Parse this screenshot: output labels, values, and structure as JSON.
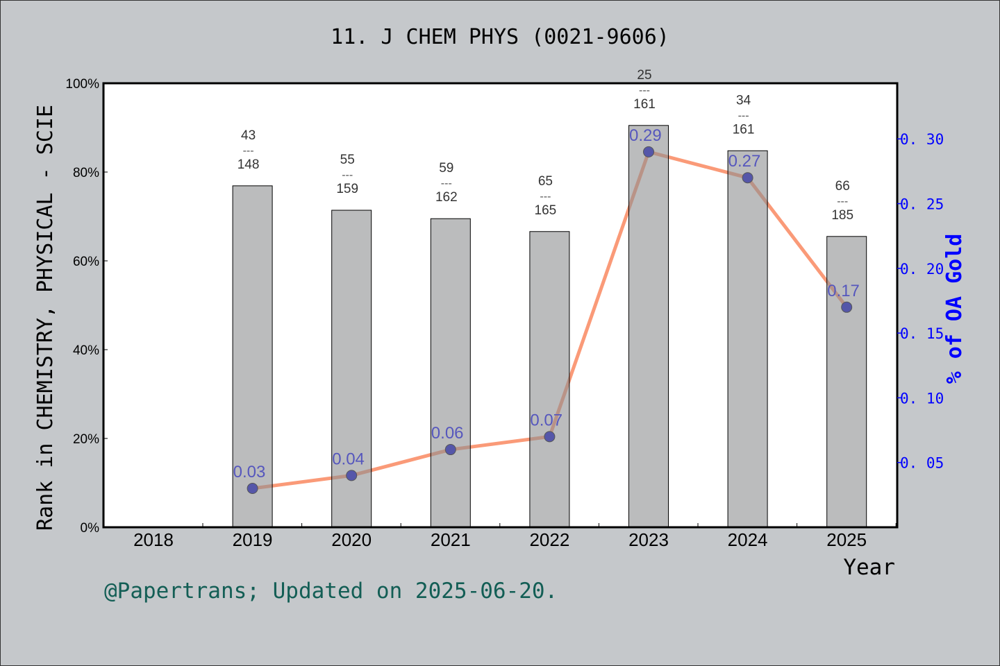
{
  "title": "11. J CHEM PHYS (0021-9606)",
  "footer": "@Papertrans; Updated on 2025-06-20.",
  "colors": {
    "background": "#c5c8cb",
    "bar": "#8e8f91",
    "line": "#fa9a78",
    "point": "#0000cc",
    "right_axis": "#0000ff",
    "footer": "#135e55"
  },
  "chart_data": {
    "type": "bar+line",
    "categories": [
      "2018",
      "2019",
      "2020",
      "2021",
      "2022",
      "2023",
      "2024",
      "2025"
    ],
    "xlabel": "Year",
    "ylabel": "Rank in CHEMISTRY, PHYSICAL - SCIE",
    "y2label": "% of OA Gold",
    "ylim": [
      0,
      100
    ],
    "y2lim": [
      0,
      0.343
    ],
    "yticks": [
      "0%",
      "20%",
      "40%",
      "60%",
      "80%",
      "100%"
    ],
    "y2ticks": [
      "0.05",
      "0.10",
      "0.15",
      "0.20",
      "0.25",
      "0.30"
    ],
    "bars": {
      "values": [
        null,
        76.9,
        71.4,
        69.5,
        66.6,
        90.5,
        84.8,
        65.5
      ],
      "rank": [
        null,
        "43",
        "55",
        "59",
        "65",
        "25",
        "34",
        "66"
      ],
      "total": [
        null,
        "148",
        "159",
        "162",
        "165",
        "161",
        "161",
        "185"
      ],
      "separator": "---"
    },
    "line": {
      "values": [
        null,
        0.03,
        0.04,
        0.06,
        0.07,
        0.29,
        0.27,
        0.17
      ],
      "labels": [
        null,
        "0.03",
        "0.04",
        "0.06",
        "0.07",
        "0.29",
        "0.27",
        "0.17"
      ]
    }
  }
}
